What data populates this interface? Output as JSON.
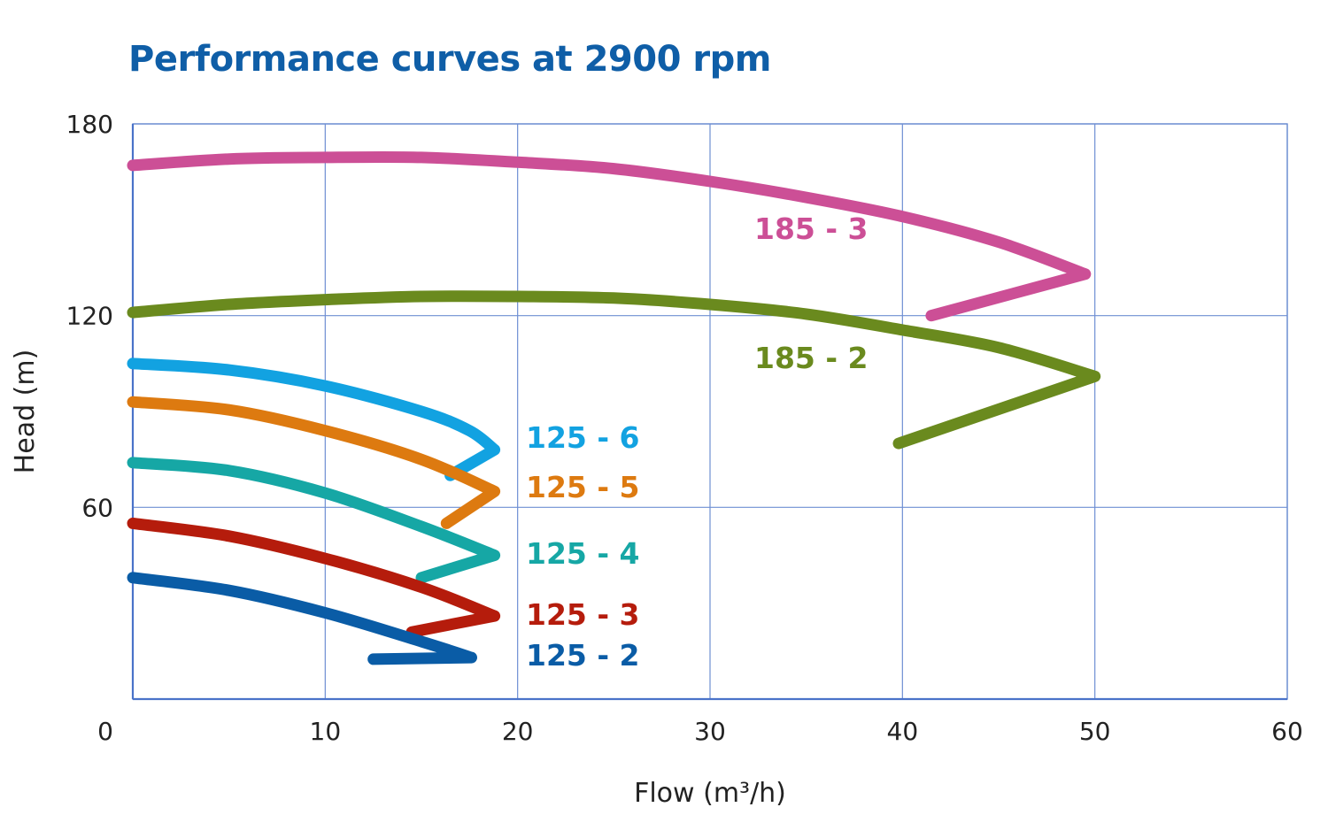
{
  "chart_data": {
    "type": "line",
    "title": "Performance curves at 2900 rpm",
    "xlabel": "Flow (m³/h)",
    "ylabel": "Head (m)",
    "xlim": [
      0,
      60
    ],
    "ylim": [
      0,
      180
    ],
    "x_ticks": [
      0,
      10,
      20,
      30,
      40,
      50,
      60
    ],
    "x_tick_labels": [
      "0",
      "10",
      "20",
      "30",
      "40",
      "50",
      "60"
    ],
    "y_ticks": [
      0,
      60,
      120,
      180
    ],
    "y_tick_labels": [
      "",
      "60",
      "120",
      "180"
    ],
    "grid": true,
    "series": [
      {
        "name": "185 - 3",
        "color": "#cc4f96",
        "x": [
          0,
          5,
          10,
          15,
          20,
          25,
          30,
          35,
          40,
          45,
          49.5,
          41.5
        ],
        "y": [
          167,
          169,
          169.5,
          169.5,
          168,
          166,
          162,
          157,
          151,
          143,
          133,
          120
        ]
      },
      {
        "name": "185 - 2",
        "color": "#6a8a1e",
        "x": [
          0,
          5,
          10,
          15,
          20,
          25,
          30,
          35,
          40,
          45,
          50,
          39.8
        ],
        "y": [
          121,
          123.5,
          125,
          126,
          126,
          125.5,
          123.5,
          120.5,
          115.5,
          110,
          101,
          80
        ]
      },
      {
        "name": "125 - 6",
        "color": "#12a2e1",
        "x": [
          0,
          5,
          10,
          15,
          17.5,
          18.8,
          16.5
        ],
        "y": [
          105,
          103,
          98,
          90,
          84,
          78,
          70
        ]
      },
      {
        "name": "125 - 5",
        "color": "#dd7a10",
        "x": [
          0,
          5,
          10,
          15,
          18.8,
          16.3
        ],
        "y": [
          93,
          90.5,
          84,
          75,
          65,
          55
        ]
      },
      {
        "name": "125 - 4",
        "color": "#16a7a5",
        "x": [
          0,
          5,
          10,
          15,
          18.8,
          15
        ],
        "y": [
          74,
          71.5,
          64.5,
          54,
          45,
          38
        ]
      },
      {
        "name": "125 - 3",
        "color": "#b51c0c",
        "x": [
          0,
          5,
          10,
          15,
          18.8,
          14.5
        ],
        "y": [
          55,
          51,
          44,
          35,
          26,
          21
        ]
      },
      {
        "name": "125 - 2",
        "color": "#0a5ca6",
        "x": [
          0,
          5,
          10,
          15,
          17.6,
          12.5
        ],
        "y": [
          38,
          34,
          27,
          18,
          13,
          12.5
        ]
      }
    ]
  }
}
